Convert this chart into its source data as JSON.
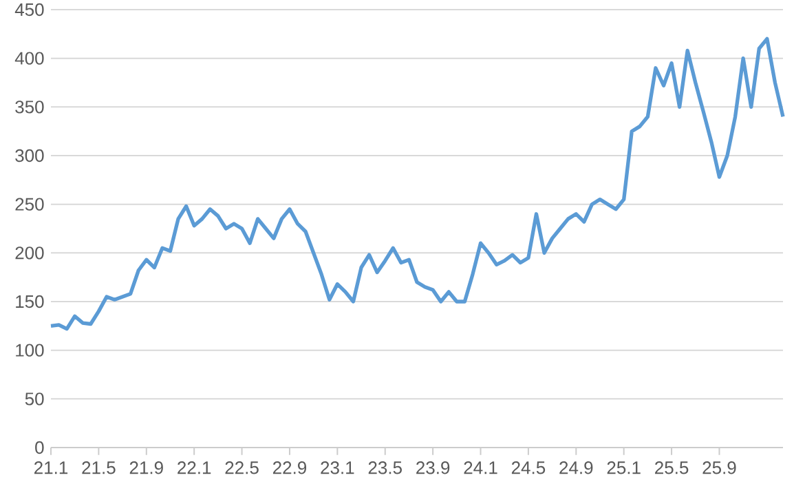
{
  "chart_data": {
    "type": "line",
    "color": "#5b9bd5",
    "grid": "y",
    "ylim": [
      0,
      450
    ],
    "yticks": [
      0,
      50,
      100,
      150,
      200,
      250,
      300,
      350,
      400,
      450
    ],
    "categories": [
      "21.1",
      null,
      null,
      null,
      null,
      null,
      "21.5",
      null,
      null,
      null,
      null,
      null,
      "21.9",
      null,
      null,
      null,
      null,
      null,
      "22.1",
      null,
      null,
      null,
      null,
      null,
      "22.5",
      null,
      null,
      null,
      null,
      null,
      "22.9",
      null,
      null,
      null,
      null,
      null,
      "23.1",
      null,
      null,
      null,
      null,
      null,
      "23.5",
      null,
      null,
      null,
      null,
      null,
      "23.9",
      null,
      null,
      null,
      null,
      null,
      "24.1",
      null,
      null,
      null,
      null,
      null,
      "24.5",
      null,
      null,
      null,
      null,
      null,
      "24.9",
      null,
      null,
      null,
      null,
      null,
      "25.1",
      null,
      null,
      null,
      null,
      null,
      "25.5",
      null,
      null,
      null,
      null,
      null,
      "25.9",
      null,
      null,
      null,
      null,
      null,
      null,
      null,
      null
    ],
    "values": [
      125,
      126,
      122,
      135,
      128,
      127,
      140,
      155,
      152,
      155,
      158,
      182,
      193,
      185,
      205,
      202,
      235,
      248,
      228,
      235,
      245,
      238,
      225,
      230,
      225,
      210,
      235,
      225,
      215,
      235,
      245,
      230,
      222,
      200,
      178,
      152,
      168,
      160,
      150,
      185,
      198,
      180,
      192,
      205,
      190,
      193,
      170,
      165,
      162,
      150,
      160,
      150,
      150,
      178,
      210,
      200,
      188,
      192,
      198,
      190,
      195,
      240,
      200,
      215,
      225,
      235,
      240,
      232,
      250,
      255,
      250,
      245,
      255,
      325,
      330,
      340,
      390,
      372,
      395,
      350,
      408,
      375,
      345,
      314,
      278,
      300,
      340,
      400,
      350,
      410,
      420,
      375,
      340
    ]
  }
}
